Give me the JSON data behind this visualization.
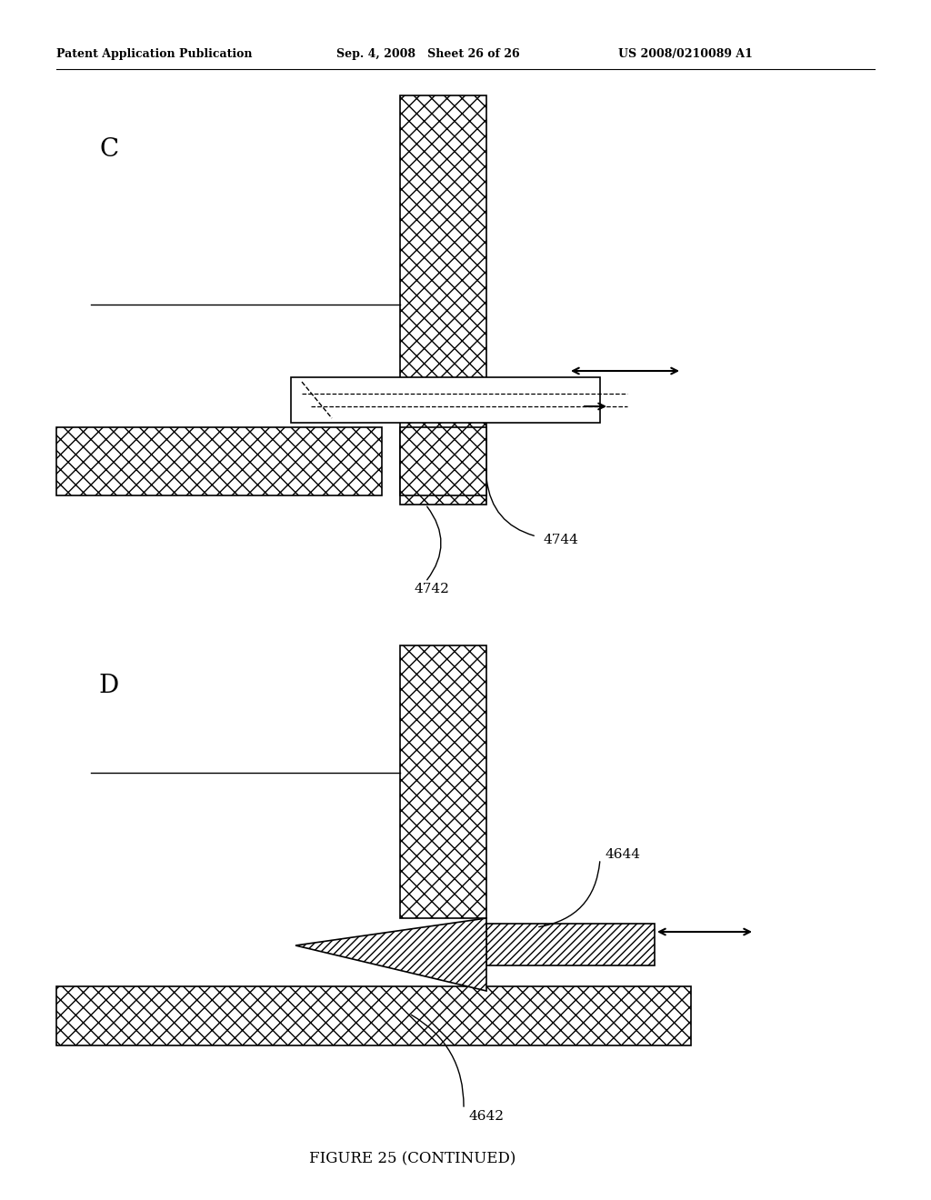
{
  "header_left": "Patent Application Publication",
  "header_center": "Sep. 4, 2008   Sheet 26 of 26",
  "header_right": "US 2008/0210089 A1",
  "figure_label": "FIGURE 25 (CONTINUED)",
  "label_C": "C",
  "label_D": "D",
  "label_4742": "4742",
  "label_4744": "4744",
  "label_4642": "4642",
  "label_4644": "4644",
  "bg_color": "#ffffff",
  "hatch_cross": "xx",
  "hatch_diag": "////"
}
